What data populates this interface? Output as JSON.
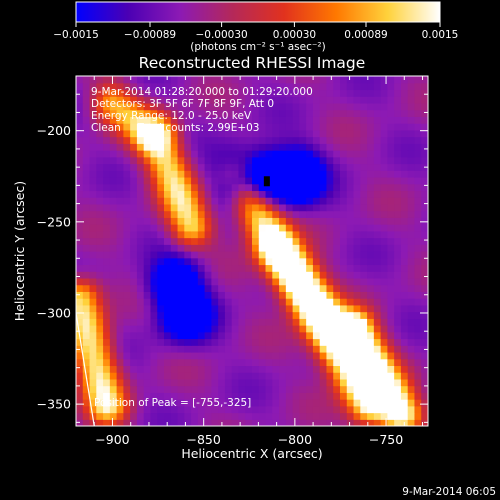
{
  "chart_data": {
    "type": "heatmap",
    "title": "Reconstructed RHESSI Image",
    "xlabel": "Heliocentric X (arcsec)",
    "ylabel": "Heliocentric Y (arcsec)",
    "xlim": [
      -920,
      -727
    ],
    "ylim": [
      -362,
      -170
    ],
    "x_ticks": [
      -900,
      -850,
      -800,
      -750
    ],
    "x_tick_labels": [
      "−900",
      "−850",
      "−800",
      "−750"
    ],
    "y_ticks": [
      -350,
      -300,
      -250,
      -200
    ],
    "y_tick_labels": [
      "−350",
      "−300",
      "−250",
      "−200"
    ],
    "colorbar": {
      "min": -0.0015,
      "max": 0.0015,
      "ticks": [
        -0.0015,
        -0.00089,
        -0.0003,
        0.0003,
        0.00089,
        0.0015
      ],
      "tick_labels": [
        "−0.0015",
        "−0.00089",
        "−0.00030",
        "0.00030",
        "0.00089",
        "0.0015"
      ],
      "units_label": "(photons cm⁻² s⁻¹ asec⁻²)",
      "colormap": [
        "#0000ff",
        "#4b00b4",
        "#8c1ab4",
        "#b4285a",
        "#e1321e",
        "#ff7800",
        "#ffd23c",
        "#ffffff"
      ]
    },
    "annotations": [
      "9-Mar-2014 01:28:20.000 to 01:29:20.000",
      "Detectors: 3F 5F 6F 7F 8F 9F, Att 0",
      "Energy Range: 12.0 - 25.0 keV",
      "Clean     Total counts: 2.99E+03"
    ],
    "peak_label": "Position of Peak = [-755,-325]",
    "peak_position": [
      -755,
      -325
    ],
    "limb_line": {
      "x": [
        -920,
        -910
      ],
      "y": [
        -300,
        -362
      ]
    },
    "bright_features": [
      {
        "x": [
          -875,
          -857
        ],
        "y": [
          -205,
          -252
        ],
        "level": 0.0011
      },
      {
        "x": [
          -832,
          -760
        ],
        "y": [
          -225,
          -350
        ],
        "level": 0.0013
      },
      {
        "x": [
          -918,
          -903
        ],
        "y": [
          -292,
          -350
        ],
        "level": 0.0012
      },
      {
        "x": [
          -810,
          -775
        ],
        "y": [
          -265,
          -310
        ],
        "level": 0.0008
      },
      {
        "x": [
          -767,
          -742
        ],
        "y": [
          -310,
          -355
        ],
        "level": 0.0015
      },
      {
        "x": [
          -900,
          -880
        ],
        "y": [
          -185,
          -200
        ],
        "level": 0.0009
      }
    ],
    "dark_features": [
      {
        "x": [
          -830,
          -800
        ],
        "y": [
          -225,
          -225
        ],
        "level": -0.0015
      },
      {
        "x": [
          -865,
          -860
        ],
        "y": [
          -285,
          -300
        ],
        "level": -0.0012
      }
    ]
  },
  "footer": {
    "timestamp": "9-Mar-2014 06:05"
  }
}
